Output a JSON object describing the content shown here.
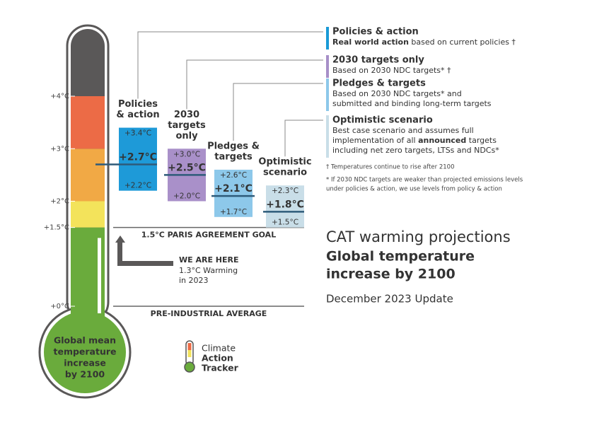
{
  "chart_data": {
    "type": "range",
    "ylim": [
      0,
      4
    ],
    "yticks": [
      {
        "value": 0,
        "label": "+0°C"
      },
      {
        "value": 1.5,
        "label": "+1.5°C"
      },
      {
        "value": 2,
        "label": "+2°C"
      },
      {
        "value": 3,
        "label": "+3°C"
      },
      {
        "value": 4,
        "label": "+4°C"
      }
    ],
    "band_colors": [
      "#6aab3c",
      "#f3e35b",
      "#f1a945",
      "#ec6b46"
    ],
    "categories": [
      [
        "Policies",
        "& action"
      ],
      [
        "2030",
        "targets",
        "only"
      ],
      [
        "Pledges &",
        "targets"
      ],
      [
        "Optimistic",
        "scenario"
      ]
    ],
    "values": [
      2.7,
      2.5,
      2.1,
      1.8
    ],
    "value_labels": [
      "+2.7°C",
      "+2.5°C",
      "+2.1°C",
      "+1.8°C"
    ],
    "highs": [
      3.4,
      3.0,
      2.6,
      2.3
    ],
    "high_labels": [
      "+3.4°C",
      "+3.0°C",
      "+2.6°C",
      "+2.3°C"
    ],
    "lows": [
      2.2,
      2.0,
      1.7,
      1.5
    ],
    "low_labels": [
      "+2.2°C",
      "+2.0°C",
      "+1.7°C",
      "+1.5°C"
    ],
    "colors": [
      "#1e9ad8",
      "#a990c9",
      "#8dc8ea",
      "#c9dee8"
    ],
    "reference_lines": [
      {
        "value": 1.5,
        "label": "1.5°C PARIS AGREEMENT GOAL"
      },
      {
        "value": 0,
        "label": "PRE-INDUSTRIAL AVERAGE"
      }
    ],
    "current": {
      "value": 1.3,
      "label": "WE ARE HERE",
      "note": [
        "1.3°C Warming",
        "in 2023"
      ]
    },
    "bulb_text": [
      "Global mean",
      "temperature",
      "increase",
      "by 2100"
    ]
  },
  "legend": [
    {
      "title": "Policies & action",
      "title_color": "#1a9ad6",
      "color": "#1a9ad6",
      "lines": [
        [
          {
            "text": "Real world action",
            "bold": true
          },
          {
            "text": " based on current policies †"
          }
        ]
      ]
    },
    {
      "title": "2030 targets only",
      "title_color": "#9b7fc0",
      "color": "#a78fc8",
      "lines": [
        [
          {
            "text": "Based on 2030 NDC targets* †"
          }
        ]
      ]
    },
    {
      "title": "Pledges & targets",
      "title_color": "#6bb6e0",
      "color": "#8dc8ea",
      "lines": [
        [
          {
            "text": "Based on 2030 NDC targets* and"
          }
        ],
        [
          {
            "text": "submitted and binding long-term targets"
          }
        ]
      ]
    },
    {
      "title": "Optimistic scenario",
      "title_color": "#2f8f96",
      "color": "#c9dee8",
      "lines": [
        [
          {
            "text": "Best case scenario and assumes full"
          }
        ],
        [
          {
            "text": "implementation of all "
          },
          {
            "text": "announced",
            "bold": true
          },
          {
            "text": " targets"
          }
        ],
        [
          {
            "text": "including net zero targets, LTSs and NDCs*"
          }
        ]
      ]
    }
  ],
  "footnotes": [
    [
      "† Temperatures continue to rise after 2100"
    ],
    [
      "* If 2030 NDC targets are weaker than projected emissions levels",
      "under policies & action, we use levels from policy & action"
    ]
  ],
  "heading": {
    "title": "CAT warming projections",
    "subtitle": [
      "Global temperature",
      "increase by 2100"
    ],
    "date": "December 2023 Update"
  },
  "logo": [
    "Climate",
    "Action",
    "Tracker"
  ]
}
